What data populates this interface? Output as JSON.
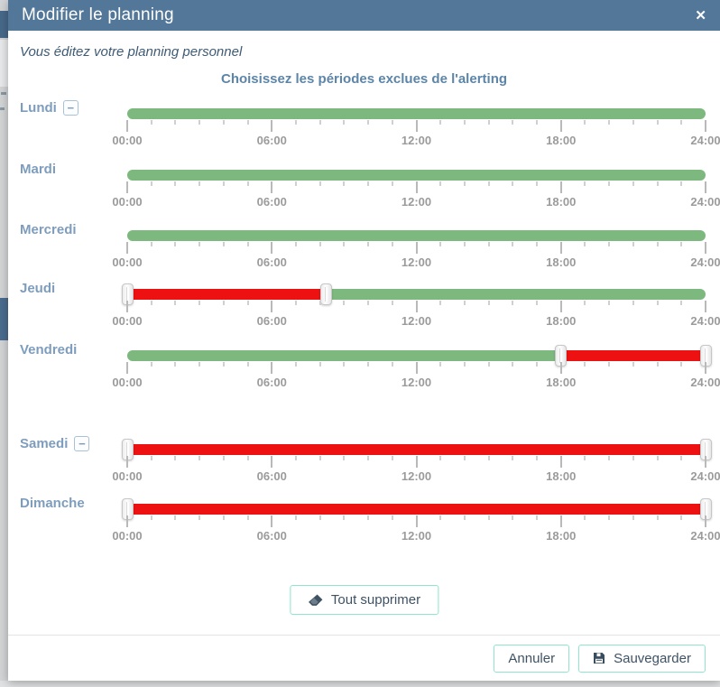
{
  "modal": {
    "title": "Modifier le planning",
    "subtitle": "Vous éditez votre planning personnel",
    "section_title": "Choisissez les périodes exclues de l'alerting",
    "icons": {
      "close": "✕",
      "remove": "−"
    }
  },
  "slider": {
    "tick_labels": [
      "00:00",
      "06:00",
      "12:00",
      "18:00",
      "24:00"
    ],
    "hours_min": 0,
    "hours_max": 24,
    "colors": {
      "included": "#7db87e",
      "excluded": "#ee1111"
    }
  },
  "days": [
    {
      "label": "Lundi",
      "removable": true,
      "segments": [
        {
          "type": "included",
          "from_pct": 0,
          "to_pct": 100,
          "from_time": "00:00",
          "to_time": "24:00"
        }
      ],
      "handles_pct": []
    },
    {
      "label": "Mardi",
      "removable": false,
      "segments": [
        {
          "type": "included",
          "from_pct": 0,
          "to_pct": 100,
          "from_time": "00:00",
          "to_time": "24:00"
        }
      ],
      "handles_pct": []
    },
    {
      "label": "Mercredi",
      "removable": false,
      "segments": [
        {
          "type": "included",
          "from_pct": 0,
          "to_pct": 100,
          "from_time": "00:00",
          "to_time": "24:00"
        }
      ],
      "handles_pct": []
    },
    {
      "label": "Jeudi",
      "removable": false,
      "segments": [
        {
          "type": "excluded",
          "from_pct": 0,
          "to_pct": 34.4,
          "from_time": "00:00",
          "to_time": "08:15"
        },
        {
          "type": "included",
          "from_pct": 34.4,
          "to_pct": 100,
          "from_time": "08:15",
          "to_time": "24:00"
        }
      ],
      "handles_pct": [
        0,
        34.4
      ]
    },
    {
      "label": "Vendredi",
      "removable": false,
      "segments": [
        {
          "type": "included",
          "from_pct": 0,
          "to_pct": 75,
          "from_time": "00:00",
          "to_time": "18:00"
        },
        {
          "type": "excluded",
          "from_pct": 75,
          "to_pct": 100,
          "from_time": "18:00",
          "to_time": "24:00"
        }
      ],
      "handles_pct": [
        75,
        100
      ]
    },
    {
      "label": "Samedi",
      "removable": true,
      "segments": [
        {
          "type": "excluded",
          "from_pct": 0,
          "to_pct": 100,
          "from_time": "00:00",
          "to_time": "24:00"
        }
      ],
      "handles_pct": [
        0,
        100
      ]
    },
    {
      "label": "Dimanche",
      "removable": false,
      "segments": [
        {
          "type": "excluded",
          "from_pct": 0,
          "to_pct": 100,
          "from_time": "00:00",
          "to_time": "24:00"
        }
      ],
      "handles_pct": [
        0,
        100
      ]
    }
  ],
  "actions": {
    "clear_all": {
      "label": "Tout supprimer",
      "icon": "eraser-icon"
    },
    "cancel": {
      "label": "Annuler"
    },
    "save": {
      "label": "Sauvegarder",
      "icon": "save-icon"
    }
  }
}
